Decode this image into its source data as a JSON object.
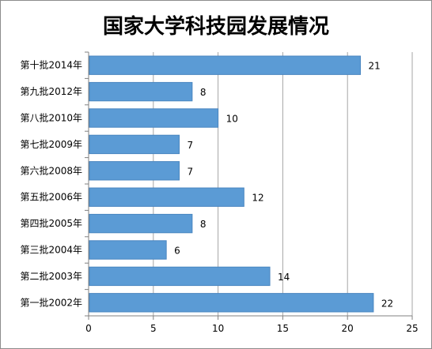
{
  "chart_data": {
    "type": "bar",
    "orientation": "horizontal",
    "title": "国家大学科技园发展情况",
    "xlabel": "",
    "ylabel": "",
    "categories": [
      "第十批2014年",
      "第九批2012年",
      "第八批2010年",
      "第七批2009年",
      "第六批2008年",
      "第五批2006年",
      "第四批2005年",
      "第三批2004年",
      "第二批2003年",
      "第一批2002年"
    ],
    "values": [
      21,
      8,
      10,
      7,
      7,
      12,
      8,
      6,
      14,
      22
    ],
    "xlim": [
      0,
      25
    ],
    "xticks": [
      0,
      5,
      10,
      15,
      20,
      25
    ],
    "grid": true,
    "legend": "none",
    "data_labels": true,
    "bar_color": "#5b9bd5",
    "bar_edge_color": "#4a86c0",
    "grid_color": "#a6a6a6"
  }
}
